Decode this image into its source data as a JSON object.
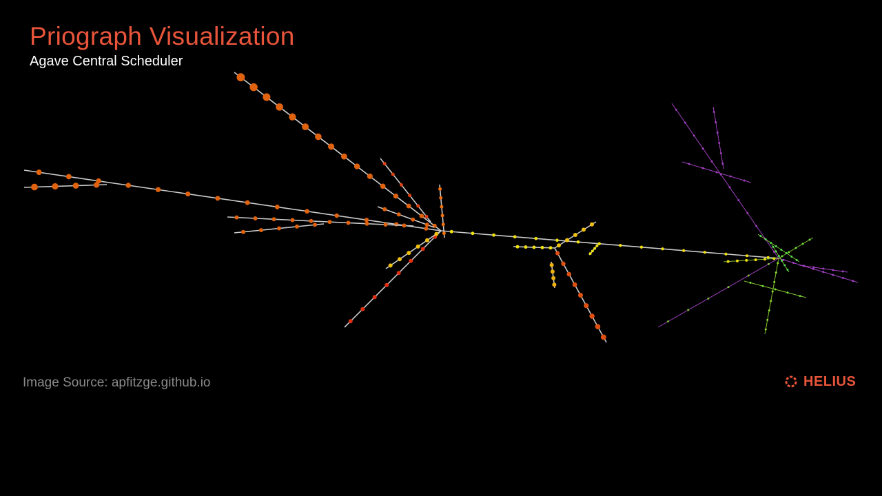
{
  "header": {
    "title": "Priograph Visualization",
    "subtitle": "Agave Central Scheduler"
  },
  "footer": {
    "source": "Image Source: apfitzge.github.io",
    "logo": "HELIUS"
  }
}
